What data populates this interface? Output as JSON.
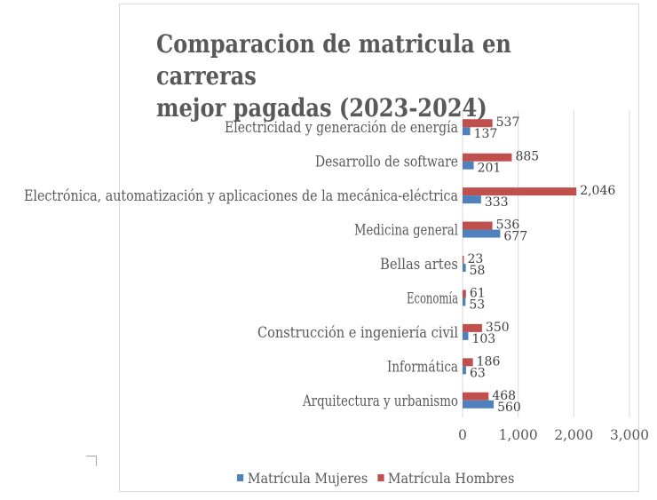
{
  "chart_data": {
    "type": "bar",
    "orientation": "horizontal",
    "title": "Comparacion de matricula en carreras mejor pagadas (2023-2024)",
    "title_lines": [
      "Comparacion de matricula en carreras",
      "mejor pagadas (2023-2024)"
    ],
    "categories": [
      "Electricidad y generación de energía",
      "Desarrollo de software",
      "Electrónica, automatización y aplicaciones de la mecánica-eléctrica",
      "Medicina general",
      "Bellas artes",
      "Economía",
      "Construcción e ingeniería civil",
      "Informática",
      "Arquitectura y urbanismo"
    ],
    "series": [
      {
        "name": "Matrícula Hombres",
        "color": "#c0504d",
        "values": [
          537,
          885,
          2046,
          536,
          23,
          61,
          350,
          186,
          468
        ],
        "labels": [
          "537",
          "885",
          "2,046",
          "536",
          "23",
          "61",
          "350",
          "186",
          "468"
        ]
      },
      {
        "name": "Matrícula Mujeres",
        "color": "#4f81bd",
        "values": [
          137,
          201,
          333,
          677,
          58,
          53,
          103,
          63,
          560
        ],
        "labels": [
          "137",
          "201",
          "333",
          "677",
          "58",
          "53",
          "103",
          "63",
          "560"
        ]
      }
    ],
    "xlim": [
      0,
      3000
    ],
    "x_ticks": [
      0,
      1000,
      2000,
      3000
    ],
    "x_tick_labels": [
      "0",
      "1,000",
      "2,000",
      "3,000"
    ],
    "grid": "vertical",
    "legend": {
      "position": "bottom",
      "entries": [
        {
          "label": "Matrícula Mujeres",
          "color": "#4f81bd"
        },
        {
          "label": "Matrícula Hombres",
          "color": "#c0504d"
        }
      ]
    }
  }
}
